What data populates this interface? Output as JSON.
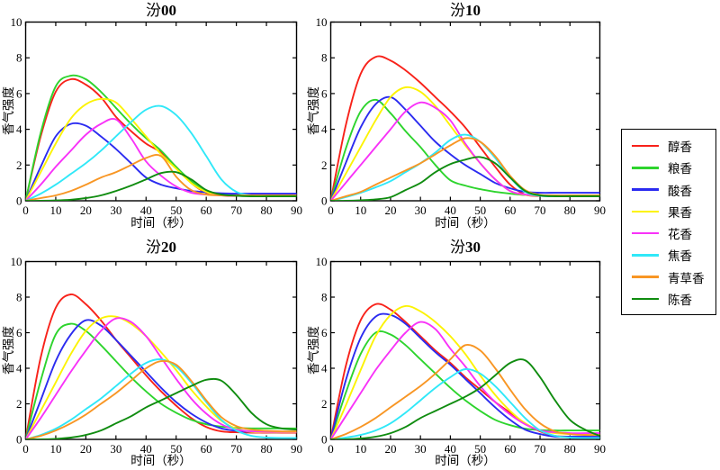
{
  "figure": {
    "background": "#ffffff",
    "xlabel": "时间（秒）",
    "ylabel": "香气强度",
    "axis_color": "#000000",
    "grid": false,
    "xlim": [
      0,
      90
    ],
    "ylim": [
      0,
      10
    ],
    "xticks": [
      0,
      10,
      20,
      30,
      40,
      50,
      60,
      70,
      80,
      90
    ],
    "yticks": [
      0,
      2,
      4,
      6,
      8,
      10
    ]
  },
  "legend": {
    "position": "right-middle",
    "entries": [
      {
        "label": "醇香",
        "color": "#f8221a"
      },
      {
        "label": "粮香",
        "color": "#2dd42d"
      },
      {
        "label": "酸香",
        "color": "#2b2bf0"
      },
      {
        "label": "果香",
        "color": "#fcf303"
      },
      {
        "label": "花香",
        "color": "#f832f8"
      },
      {
        "label": "焦香",
        "color": "#30e8f8"
      },
      {
        "label": "青草香",
        "color": "#f89624"
      },
      {
        "label": "陈香",
        "color": "#108c10"
      }
    ]
  },
  "chart_data": [
    {
      "type": "line",
      "title": "汾00",
      "xlabel": "时间（秒）",
      "ylabel": "香气强度",
      "xlim": [
        0,
        90
      ],
      "ylim": [
        0,
        10
      ],
      "x": [
        0,
        5,
        10,
        15,
        20,
        25,
        30,
        35,
        40,
        45,
        50,
        55,
        60,
        65,
        70,
        75,
        80,
        85,
        90
      ],
      "series": [
        {
          "name": "醇香",
          "values": [
            0,
            3.6,
            6.1,
            6.8,
            6.5,
            5.8,
            4.7,
            3.9,
            3.2,
            2.7,
            1.9,
            1.0,
            0.45,
            0.3,
            0.28,
            0.28,
            0.28,
            0.28,
            0.28
          ]
        },
        {
          "name": "粮香",
          "values": [
            0,
            3.8,
            6.4,
            7.0,
            6.8,
            6.1,
            5.2,
            4.3,
            3.5,
            2.8,
            1.9,
            1.1,
            0.5,
            0.32,
            0.3,
            0.3,
            0.3,
            0.3,
            0.3
          ]
        },
        {
          "name": "酸香",
          "values": [
            0,
            1.9,
            3.6,
            4.3,
            4.2,
            3.6,
            2.9,
            2.1,
            1.3,
            0.9,
            0.7,
            0.55,
            0.48,
            0.42,
            0.4,
            0.4,
            0.4,
            0.4,
            0.4
          ]
        },
        {
          "name": "果香",
          "values": [
            0,
            1.6,
            3.2,
            4.6,
            5.4,
            5.7,
            5.5,
            4.6,
            3.6,
            2.6,
            1.8,
            1.0,
            0.5,
            0.32,
            0.3,
            0.3,
            0.3,
            0.3,
            0.3
          ]
        },
        {
          "name": "花香",
          "values": [
            0,
            0.9,
            1.9,
            2.8,
            3.7,
            4.3,
            4.55,
            3.5,
            2.2,
            1.4,
            0.8,
            0.45,
            0.35,
            0.3,
            0.3,
            0.3,
            0.3,
            0.3,
            0.3
          ]
        },
        {
          "name": "焦香",
          "values": [
            0,
            0.4,
            0.9,
            1.5,
            2.1,
            2.8,
            3.6,
            4.4,
            5.1,
            5.3,
            4.8,
            3.8,
            2.5,
            1.2,
            0.5,
            0.3,
            0.27,
            0.27,
            0.27
          ]
        },
        {
          "name": "青草香",
          "values": [
            0,
            0.15,
            0.3,
            0.55,
            0.9,
            1.3,
            1.6,
            2.0,
            2.4,
            2.5,
            1.35,
            0.6,
            0.35,
            0.3,
            0.3,
            0.3,
            0.3,
            0.3,
            0.3
          ]
        },
        {
          "name": "陈香",
          "values": [
            0,
            0,
            0.02,
            0.06,
            0.15,
            0.3,
            0.55,
            0.85,
            1.2,
            1.55,
            1.6,
            1.2,
            0.6,
            0.35,
            0.28,
            0.25,
            0.25,
            0.25,
            0.25
          ]
        }
      ]
    },
    {
      "type": "line",
      "title": "汾10",
      "xlabel": "时间（秒）",
      "ylabel": "香气强度",
      "xlim": [
        0,
        90
      ],
      "ylim": [
        0,
        10
      ],
      "x": [
        0,
        5,
        10,
        15,
        20,
        25,
        30,
        35,
        40,
        45,
        50,
        55,
        60,
        65,
        70,
        75,
        80,
        85,
        90
      ],
      "series": [
        {
          "name": "醇香",
          "values": [
            0,
            4.2,
            7.1,
            8.05,
            7.85,
            7.3,
            6.6,
            5.8,
            5.0,
            4.1,
            3.0,
            1.9,
            0.9,
            0.35,
            0.27,
            0.25,
            0.25,
            0.25,
            0.25
          ]
        },
        {
          "name": "粮香",
          "values": [
            0,
            2.9,
            5.0,
            5.65,
            4.9,
            3.9,
            3.0,
            2.0,
            1.15,
            0.85,
            0.65,
            0.5,
            0.4,
            0.32,
            0.3,
            0.3,
            0.3,
            0.3,
            0.3
          ]
        },
        {
          "name": "酸香",
          "values": [
            0,
            2.1,
            4.1,
            5.4,
            5.8,
            5.1,
            4.2,
            3.3,
            2.6,
            2.0,
            1.5,
            1.0,
            0.7,
            0.5,
            0.45,
            0.45,
            0.45,
            0.45,
            0.45
          ]
        },
        {
          "name": "果香",
          "values": [
            0,
            1.5,
            3.0,
            4.5,
            5.8,
            6.35,
            6.1,
            5.3,
            4.2,
            3.1,
            2.1,
            1.2,
            0.55,
            0.33,
            0.3,
            0.3,
            0.3,
            0.3,
            0.3
          ]
        },
        {
          "name": "花香",
          "values": [
            0,
            1.0,
            2.0,
            3.0,
            4.0,
            5.0,
            5.5,
            5.2,
            4.5,
            3.2,
            2.1,
            1.2,
            0.55,
            0.35,
            0.3,
            0.3,
            0.3,
            0.3,
            0.3
          ]
        },
        {
          "name": "焦香",
          "values": [
            0,
            0.2,
            0.45,
            0.75,
            1.1,
            1.6,
            2.1,
            2.7,
            3.4,
            3.7,
            3.3,
            2.4,
            1.3,
            0.5,
            0.28,
            0.25,
            0.25,
            0.25,
            0.25
          ]
        },
        {
          "name": "青草香",
          "values": [
            0,
            0.25,
            0.5,
            0.9,
            1.3,
            1.7,
            2.1,
            2.6,
            3.1,
            3.5,
            3.3,
            2.5,
            1.4,
            0.6,
            0.33,
            0.3,
            0.3,
            0.3,
            0.3
          ]
        },
        {
          "name": "陈香",
          "values": [
            0,
            0,
            0.03,
            0.08,
            0.2,
            0.6,
            1.0,
            1.6,
            2.05,
            2.3,
            2.45,
            2.1,
            1.3,
            0.55,
            0.3,
            0.25,
            0.25,
            0.25,
            0.25
          ]
        }
      ]
    },
    {
      "type": "line",
      "title": "汾20",
      "xlabel": "时间（秒）",
      "ylabel": "香气强度",
      "xlim": [
        0,
        90
      ],
      "ylim": [
        0,
        10
      ],
      "x": [
        0,
        5,
        10,
        15,
        20,
        25,
        30,
        35,
        40,
        45,
        50,
        55,
        60,
        65,
        70,
        75,
        80,
        85,
        90
      ],
      "series": [
        {
          "name": "醇香",
          "values": [
            0,
            4.6,
            7.4,
            8.15,
            7.6,
            6.7,
            5.6,
            4.6,
            3.6,
            2.7,
            1.9,
            1.2,
            0.7,
            0.45,
            0.4,
            0.38,
            0.38,
            0.38,
            0.38
          ]
        },
        {
          "name": "粮香",
          "values": [
            0,
            3.3,
            5.9,
            6.5,
            6.1,
            5.3,
            4.4,
            3.5,
            2.7,
            2.0,
            1.5,
            1.1,
            0.85,
            0.72,
            0.65,
            0.62,
            0.62,
            0.62,
            0.62
          ]
        },
        {
          "name": "酸香",
          "values": [
            0,
            2.2,
            4.4,
            5.9,
            6.7,
            6.4,
            5.6,
            4.7,
            3.8,
            2.9,
            2.1,
            1.45,
            0.95,
            0.62,
            0.48,
            0.42,
            0.4,
            0.4,
            0.4
          ]
        },
        {
          "name": "果香",
          "values": [
            0,
            1.6,
            3.2,
            4.8,
            6.1,
            6.8,
            6.9,
            6.5,
            5.8,
            4.9,
            3.9,
            2.8,
            1.85,
            1.05,
            0.6,
            0.42,
            0.4,
            0.4,
            0.4
          ]
        },
        {
          "name": "花香",
          "values": [
            0,
            1.2,
            2.5,
            3.8,
            5.0,
            6.1,
            6.8,
            6.6,
            5.8,
            4.6,
            3.4,
            2.3,
            1.45,
            0.85,
            0.55,
            0.45,
            0.42,
            0.42,
            0.42
          ]
        },
        {
          "name": "焦香",
          "values": [
            0,
            0.25,
            0.6,
            1.1,
            1.7,
            2.3,
            3.0,
            3.7,
            4.3,
            4.5,
            4.1,
            3.2,
            2.1,
            1.1,
            0.5,
            0.2,
            0.1,
            0.08,
            0.08
          ]
        },
        {
          "name": "青草香",
          "values": [
            0,
            0.2,
            0.5,
            0.9,
            1.4,
            2.0,
            2.6,
            3.3,
            4.0,
            4.4,
            4.2,
            3.3,
            2.2,
            1.25,
            0.75,
            0.55,
            0.48,
            0.45,
            0.45
          ]
        },
        {
          "name": "陈香",
          "values": [
            0,
            0,
            0.03,
            0.1,
            0.25,
            0.5,
            0.9,
            1.3,
            1.8,
            2.2,
            2.6,
            3.0,
            3.35,
            3.3,
            2.5,
            1.5,
            0.85,
            0.62,
            0.55
          ]
        }
      ]
    },
    {
      "type": "line",
      "title": "汾30",
      "xlabel": "时间（秒）",
      "ylabel": "香气强度",
      "xlim": [
        0,
        90
      ],
      "ylim": [
        0,
        10
      ],
      "x": [
        0,
        5,
        10,
        15,
        20,
        25,
        30,
        35,
        40,
        45,
        50,
        55,
        60,
        65,
        70,
        75,
        80,
        85,
        90
      ],
      "series": [
        {
          "name": "醇香",
          "values": [
            0,
            4.1,
            6.7,
            7.6,
            7.3,
            6.6,
            5.8,
            5.0,
            4.3,
            3.5,
            2.8,
            2.1,
            1.5,
            0.9,
            0.45,
            0.2,
            0.15,
            0.15,
            0.15
          ]
        },
        {
          "name": "粮香",
          "values": [
            0,
            2.6,
            4.8,
            6.0,
            5.9,
            5.3,
            4.5,
            3.7,
            2.9,
            2.2,
            1.6,
            1.1,
            0.8,
            0.6,
            0.52,
            0.5,
            0.5,
            0.5,
            0.5
          ]
        },
        {
          "name": "酸香",
          "values": [
            0,
            3.3,
            5.7,
            6.9,
            7.0,
            6.5,
            5.7,
            4.9,
            4.2,
            3.4,
            2.6,
            1.8,
            1.1,
            0.55,
            0.3,
            0.15,
            0.15,
            0.15,
            0.15
          ]
        },
        {
          "name": "果香",
          "values": [
            0,
            1.9,
            3.9,
            5.8,
            7.0,
            7.5,
            7.2,
            6.6,
            5.8,
            4.8,
            3.6,
            2.5,
            1.6,
            0.9,
            0.5,
            0.35,
            0.3,
            0.3,
            0.3
          ]
        },
        {
          "name": "花香",
          "values": [
            0,
            1.3,
            2.6,
            3.9,
            5.0,
            6.0,
            6.6,
            6.2,
            5.1,
            4.1,
            3.0,
            2.1,
            1.4,
            0.85,
            0.5,
            0.4,
            0.35,
            0.35,
            0.35
          ]
        },
        {
          "name": "焦香",
          "values": [
            0,
            0.1,
            0.25,
            0.5,
            0.9,
            1.5,
            2.2,
            2.9,
            3.5,
            3.95,
            3.7,
            3.0,
            2.1,
            1.2,
            0.5,
            0.2,
            0.1,
            0.08,
            0.08
          ]
        },
        {
          "name": "青草香",
          "values": [
            0,
            0.3,
            0.7,
            1.2,
            1.8,
            2.4,
            3.0,
            3.7,
            4.5,
            5.3,
            5.0,
            4.0,
            2.8,
            1.7,
            0.9,
            0.45,
            0.3,
            0.25,
            0.25
          ]
        },
        {
          "name": "陈香",
          "values": [
            0,
            0,
            0.05,
            0.15,
            0.35,
            0.7,
            1.2,
            1.6,
            2.0,
            2.4,
            2.9,
            3.6,
            4.3,
            4.45,
            3.5,
            2.2,
            1.1,
            0.55,
            0.2
          ]
        }
      ]
    }
  ]
}
